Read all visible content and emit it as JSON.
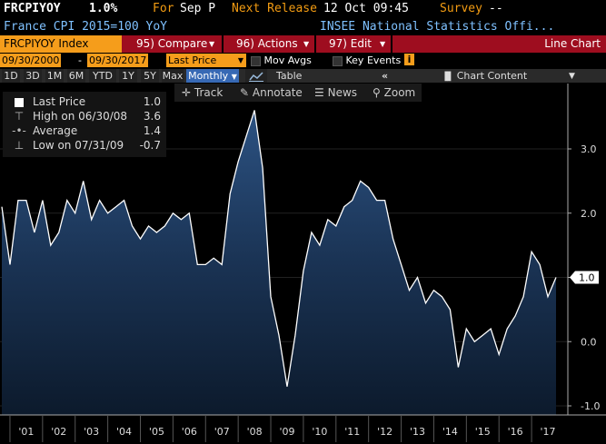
{
  "header": {
    "ticker": "FRCPIYOY",
    "last_value": "1.0%",
    "for_label": "For",
    "period": "Sep P",
    "next_release_label": "Next Release",
    "next_release_value": "12 Oct 09:45",
    "survey_label": "Survey",
    "survey_value": "--",
    "description": "France CPI 2015=100 YoY",
    "source": "INSEE National Statistics Offi..."
  },
  "toolbar": {
    "security": "FRCPIYOY Index",
    "compare": "95) Compare",
    "actions": "96) Actions",
    "edit": "97) Edit",
    "view": "Line Chart"
  },
  "date_row": {
    "start": "09/30/2000",
    "dash": "-",
    "end": "09/30/2017",
    "price_mode": "Last Price",
    "mov_avgs": "Mov Avgs",
    "key_events": "Key Events",
    "info": "i"
  },
  "ranges": {
    "items": [
      "1D",
      "3D",
      "1M",
      "6M",
      "YTD",
      "1Y",
      "5Y",
      "Max"
    ],
    "frequency": "Monthly",
    "table": "Table",
    "collapse": "«",
    "chart_content": "Chart Content"
  },
  "tools": {
    "track": "Track",
    "annotate": "Annotate",
    "news": "News",
    "zoom": "Zoom"
  },
  "legend": {
    "rows": [
      {
        "name": "Last Price",
        "value": "1.0"
      },
      {
        "name": "High on 06/30/08",
        "value": "3.6"
      },
      {
        "name": "Average",
        "value": "1.4"
      },
      {
        "name": "Low on 07/31/09",
        "value": "-0.7"
      }
    ]
  },
  "colors": {
    "accent_orange": "#f59d1b",
    "toolbar_red": "#9e0d1f",
    "line": "#ffffff",
    "area_top": "#1f3a5f"
  },
  "chart_data": {
    "type": "area",
    "title": "",
    "xlabel": "",
    "ylabel": "",
    "ylim": [
      -1.0,
      4.0
    ],
    "y_ticks": [
      "3.0",
      "2.0",
      "1.0",
      "0.0",
      "-1.0"
    ],
    "y_tick_values": [
      3.0,
      2.0,
      1.0,
      0.0,
      -1.0
    ],
    "last_value_label": "1.0",
    "x_ticks": [
      "'01",
      "'02",
      "'03",
      "'04",
      "'05",
      "'06",
      "'07",
      "'08",
      "'09",
      "'10",
      "'11",
      "'12",
      "'13",
      "'14",
      "'15",
      "'16",
      "'17"
    ],
    "series": [
      {
        "values": [
          [
            2000.75,
            2.1
          ],
          [
            2001.0,
            1.2
          ],
          [
            2001.25,
            2.2
          ],
          [
            2001.5,
            2.2
          ],
          [
            2001.75,
            1.7
          ],
          [
            2002.0,
            2.2
          ],
          [
            2002.25,
            1.5
          ],
          [
            2002.5,
            1.7
          ],
          [
            2002.75,
            2.2
          ],
          [
            2003.0,
            2.0
          ],
          [
            2003.25,
            2.5
          ],
          [
            2003.5,
            1.9
          ],
          [
            2003.75,
            2.2
          ],
          [
            2004.0,
            2.0
          ],
          [
            2004.25,
            2.1
          ],
          [
            2004.5,
            2.2
          ],
          [
            2004.75,
            1.8
          ],
          [
            2005.0,
            1.6
          ],
          [
            2005.25,
            1.8
          ],
          [
            2005.5,
            1.7
          ],
          [
            2005.75,
            1.8
          ],
          [
            2006.0,
            2.0
          ],
          [
            2006.25,
            1.9
          ],
          [
            2006.5,
            2.0
          ],
          [
            2006.75,
            1.2
          ],
          [
            2007.0,
            1.2
          ],
          [
            2007.25,
            1.3
          ],
          [
            2007.5,
            1.2
          ],
          [
            2007.75,
            2.3
          ],
          [
            2008.0,
            2.8
          ],
          [
            2008.25,
            3.2
          ],
          [
            2008.5,
            3.6
          ],
          [
            2008.75,
            2.7
          ],
          [
            2009.0,
            0.7
          ],
          [
            2009.25,
            0.1
          ],
          [
            2009.5,
            -0.7
          ],
          [
            2009.75,
            0.1
          ],
          [
            2010.0,
            1.1
          ],
          [
            2010.25,
            1.7
          ],
          [
            2010.5,
            1.5
          ],
          [
            2010.75,
            1.9
          ],
          [
            2011.0,
            1.8
          ],
          [
            2011.25,
            2.1
          ],
          [
            2011.5,
            2.2
          ],
          [
            2011.75,
            2.5
          ],
          [
            2012.0,
            2.4
          ],
          [
            2012.25,
            2.2
          ],
          [
            2012.5,
            2.2
          ],
          [
            2012.75,
            1.6
          ],
          [
            2013.0,
            1.2
          ],
          [
            2013.25,
            0.8
          ],
          [
            2013.5,
            1.0
          ],
          [
            2013.75,
            0.6
          ],
          [
            2014.0,
            0.8
          ],
          [
            2014.25,
            0.7
          ],
          [
            2014.5,
            0.5
          ],
          [
            2014.75,
            -0.4
          ],
          [
            2015.0,
            0.2
          ],
          [
            2015.25,
            0.0
          ],
          [
            2015.5,
            0.1
          ],
          [
            2015.75,
            0.2
          ],
          [
            2016.0,
            -0.2
          ],
          [
            2016.25,
            0.2
          ],
          [
            2016.5,
            0.4
          ],
          [
            2016.75,
            0.7
          ],
          [
            2017.0,
            1.4
          ],
          [
            2017.25,
            1.2
          ],
          [
            2017.5,
            0.7
          ],
          [
            2017.75,
            1.0
          ]
        ]
      }
    ]
  }
}
